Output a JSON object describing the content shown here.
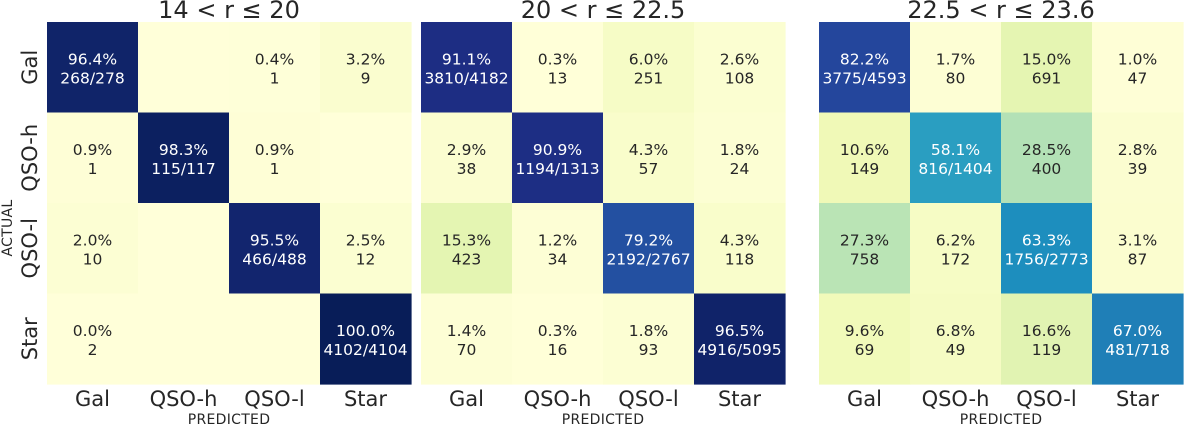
{
  "ylabel": "ACTUAL",
  "chart_data": [
    {
      "type": "heatmap",
      "title": "14 < r ≤ 20",
      "xlabel": "PREDICTED",
      "x_categories": [
        "Gal",
        "QSO-h",
        "QSO-l",
        "Star"
      ],
      "y_categories": [
        "Gal",
        "QSO-h",
        "QSO-l",
        "Star"
      ],
      "percent": [
        [
          96.4,
          null,
          0.4,
          3.2
        ],
        [
          0.9,
          98.3,
          0.9,
          null
        ],
        [
          2.0,
          null,
          95.5,
          2.5
        ],
        [
          0.0,
          null,
          null,
          100.0
        ]
      ],
      "labels": [
        [
          [
            "96.4%",
            "268/278"
          ],
          null,
          [
            "0.4%",
            "1"
          ],
          [
            "3.2%",
            "9"
          ]
        ],
        [
          [
            "0.9%",
            "1"
          ],
          [
            "98.3%",
            "115/117"
          ],
          [
            "0.9%",
            "1"
          ],
          null
        ],
        [
          [
            "2.0%",
            "10"
          ],
          null,
          [
            "95.5%",
            "466/488"
          ],
          [
            "2.5%",
            "12"
          ]
        ],
        [
          [
            "0.0%",
            "2"
          ],
          null,
          null,
          [
            "100.0%",
            "4102/4104"
          ]
        ]
      ]
    },
    {
      "type": "heatmap",
      "title": "20 < r ≤ 22.5",
      "xlabel": "PREDICTED",
      "x_categories": [
        "Gal",
        "QSO-h",
        "QSO-l",
        "Star"
      ],
      "y_categories": [
        "Gal",
        "QSO-h",
        "QSO-l",
        "Star"
      ],
      "percent": [
        [
          91.1,
          0.3,
          6.0,
          2.6
        ],
        [
          2.9,
          90.9,
          4.3,
          1.8
        ],
        [
          15.3,
          1.2,
          79.2,
          4.3
        ],
        [
          1.4,
          0.3,
          1.8,
          96.5
        ]
      ],
      "labels": [
        [
          [
            "91.1%",
            "3810/4182"
          ],
          [
            "0.3%",
            "13"
          ],
          [
            "6.0%",
            "251"
          ],
          [
            "2.6%",
            "108"
          ]
        ],
        [
          [
            "2.9%",
            "38"
          ],
          [
            "90.9%",
            "1194/1313"
          ],
          [
            "4.3%",
            "57"
          ],
          [
            "1.8%",
            "24"
          ]
        ],
        [
          [
            "15.3%",
            "423"
          ],
          [
            "1.2%",
            "34"
          ],
          [
            "79.2%",
            "2192/2767"
          ],
          [
            "4.3%",
            "118"
          ]
        ],
        [
          [
            "1.4%",
            "70"
          ],
          [
            "0.3%",
            "16"
          ],
          [
            "1.8%",
            "93"
          ],
          [
            "96.5%",
            "4916/5095"
          ]
        ]
      ]
    },
    {
      "type": "heatmap",
      "title": "22.5 < r ≤ 23.6",
      "xlabel": "PREDICTED",
      "x_categories": [
        "Gal",
        "QSO-h",
        "QSO-l",
        "Star"
      ],
      "y_categories": [
        "Gal",
        "QSO-h",
        "QSO-l",
        "Star"
      ],
      "percent": [
        [
          82.2,
          1.7,
          15.0,
          1.0
        ],
        [
          10.6,
          58.1,
          28.5,
          2.8
        ],
        [
          27.3,
          6.2,
          63.3,
          3.1
        ],
        [
          9.6,
          6.8,
          16.6,
          67.0
        ]
      ],
      "labels": [
        [
          [
            "82.2%",
            "3775/4593"
          ],
          [
            "1.7%",
            "80"
          ],
          [
            "15.0%",
            "691"
          ],
          [
            "1.0%",
            "47"
          ]
        ],
        [
          [
            "10.6%",
            "149"
          ],
          [
            "58.1%",
            "816/1404"
          ],
          [
            "28.5%",
            "400"
          ],
          [
            "2.8%",
            "39"
          ]
        ],
        [
          [
            "27.3%",
            "758"
          ],
          [
            "6.2%",
            "172"
          ],
          [
            "63.3%",
            "1756/2773"
          ],
          [
            "3.1%",
            "87"
          ]
        ],
        [
          [
            "9.6%",
            "69"
          ],
          [
            "6.8%",
            "49"
          ],
          [
            "16.6%",
            "119"
          ],
          [
            "67.0%",
            "481/718"
          ]
        ]
      ]
    }
  ],
  "colors": {
    "scale": [
      "#ffffd9",
      "#edf8b1",
      "#c7e9b4",
      "#7fcdbb",
      "#41b6c4",
      "#1d91c0",
      "#225ea8",
      "#253494",
      "#081d58"
    ],
    "text_dark": "#262626",
    "text_light": "#ffffff"
  }
}
